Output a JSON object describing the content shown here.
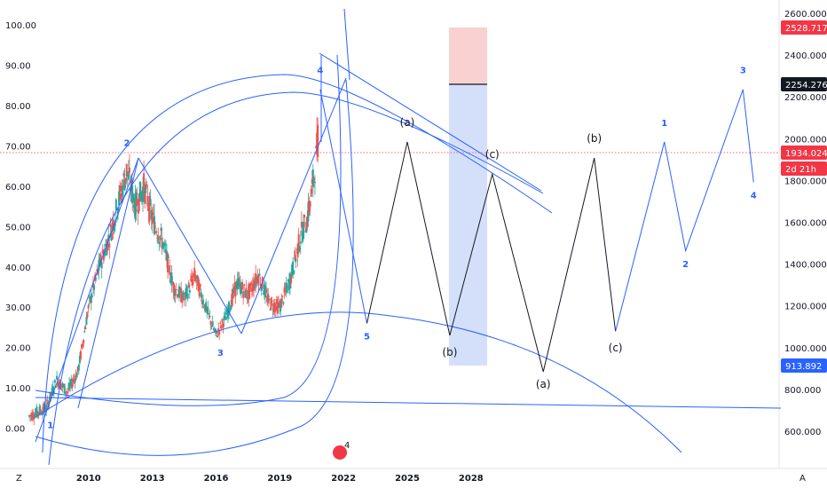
{
  "chart_data": {
    "type": "line",
    "left_axis": {
      "ticks": [
        "100.00",
        "90.00",
        "80.00",
        "70.00",
        "60.00",
        "50.00",
        "40.00",
        "30.00",
        "20.00",
        "10.00",
        "0.00"
      ],
      "ylim": [
        -10,
        104
      ]
    },
    "right_axis": {
      "ticks": [
        "2600.000",
        "2400.000",
        "2200.000",
        "2000.000",
        "1800.000",
        "1600.000",
        "1400.000",
        "1200.000",
        "1000.000",
        "800.000",
        "600.000"
      ]
    },
    "x_axis": {
      "ticks": [
        "2010",
        "2013",
        "2016",
        "2019",
        "2022",
        "2025",
        "2028"
      ]
    },
    "price_history": {
      "x": [
        2007.2,
        2008.0,
        2008.5,
        2009.0,
        2009.5,
        2010.0,
        2010.5,
        2011.0,
        2011.5,
        2011.8,
        2012.2,
        2012.6,
        2013.0,
        2013.5,
        2014.0,
        2014.5,
        2015.0,
        2015.5,
        2016.0,
        2016.5,
        2017.0,
        2017.5,
        2018.0,
        2018.5,
        2019.0,
        2019.5,
        2020.0,
        2020.3,
        2020.6,
        2020.8
      ],
      "y": [
        3,
        5,
        12,
        9,
        14,
        30,
        40,
        48,
        58,
        64,
        55,
        60,
        52,
        46,
        35,
        32,
        38,
        30,
        23,
        28,
        36,
        33,
        38,
        31,
        30,
        37,
        48,
        52,
        62,
        72
      ]
    },
    "projection_blue": {
      "x": [
        2020.9,
        2023.1
      ],
      "y": [
        84,
        26
      ]
    },
    "projection_black": {
      "x": [
        2023.1,
        2025.0,
        2027.0,
        2029.0,
        2031.4,
        2033.8,
        2034.8
      ],
      "y": [
        26,
        71,
        23,
        63,
        14,
        67,
        24
      ]
    },
    "projection_blue_2": {
      "x": [
        2034.8,
        2037.1,
        2038.1,
        2040.8,
        2041.3
      ],
      "y": [
        24,
        71,
        44,
        84,
        61
      ]
    },
    "wave_labels": [
      {
        "text": "1",
        "x": 2008.2,
        "y": 0
      },
      {
        "text": "2",
        "x": 2011.8,
        "y": 70
      },
      {
        "text": "3",
        "x": 2016.2,
        "y": 18
      },
      {
        "text": "4",
        "x": 2020.9,
        "y": 88
      },
      {
        "text": "5",
        "x": 2023.1,
        "y": 22
      },
      {
        "text": "1",
        "x": 2037.1,
        "y": 75
      },
      {
        "text": "2",
        "x": 2038.1,
        "y": 40
      },
      {
        "text": "3",
        "x": 2040.8,
        "y": 88
      },
      {
        "text": "4",
        "x": 2041.3,
        "y": 57
      }
    ],
    "corrective_labels": [
      {
        "text": "(a)",
        "x": 2025.0,
        "y": 75
      },
      {
        "text": "(b)",
        "x": 2027.0,
        "y": 18
      },
      {
        "text": "(c)",
        "x": 2029.0,
        "y": 67
      },
      {
        "text": "(a)",
        "x": 2031.4,
        "y": 10
      },
      {
        "text": "(b)",
        "x": 2033.8,
        "y": 71
      },
      {
        "text": "(c)",
        "x": 2034.8,
        "y": 19
      }
    ],
    "price_badges": [
      {
        "text": "2528.717",
        "color": "#f23645"
      },
      {
        "text": "2254.276",
        "color": "#131722"
      },
      {
        "text": "1934.024",
        "color": "#f23645"
      },
      {
        "text": "2d 21h",
        "color": "#f23645"
      },
      {
        "text": "913.892",
        "color": "#2962ff"
      }
    ],
    "marker_badge": "4",
    "axis_corner_left": "Z",
    "axis_corner_right": "A",
    "colors": {
      "wave": "#2962ff",
      "projection": "#131722",
      "candle_up": "#26a69a",
      "candle_down": "#ef5350",
      "profit_zone": "#f7c6c6",
      "loss_zone": "#c9d8f8"
    }
  }
}
